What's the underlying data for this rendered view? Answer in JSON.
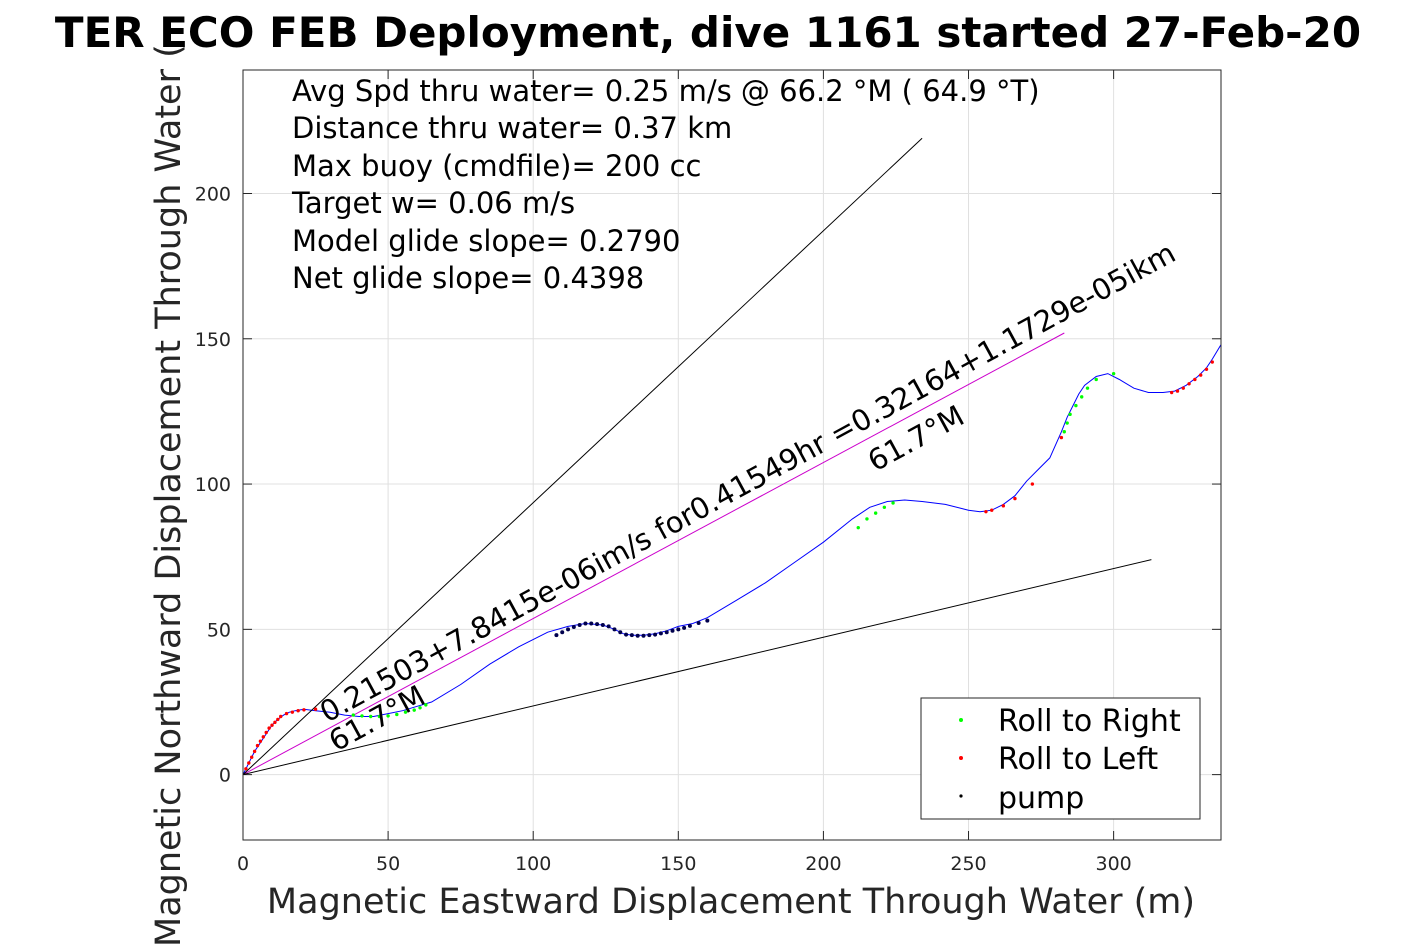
{
  "title": "TER ECO FEB Deployment, dive 1161 started 27-Feb-20",
  "info_lines": [
    "Avg Spd thru water=  0.25 m/s @  66.2 °M ( 64.9 °T)",
    "Distance thru water=  0.37 km",
    "Max buoy (cmdfile)= 200 cc",
    "Target w= 0.06 m/s",
    "Model glide slope= 0.2790",
    "Net glide slope= 0.4398"
  ],
  "annotations": {
    "fit_line": "0.21503+7.8415e-06im/s for0.41549hr =0.32164+1.1729e-05ikm",
    "heading_left": "61.7°M",
    "heading_right": "61.7°M"
  },
  "legend": {
    "items": [
      {
        "label": "Roll to Right",
        "color": "#00ff00"
      },
      {
        "label": "Roll to Left",
        "color": "#ff0000"
      },
      {
        "label": "pump",
        "color": "#000000"
      }
    ]
  },
  "colors": {
    "track": "#0000ff",
    "fit": "#cc00cc",
    "pump_dots": "#00004d",
    "grid": "#e0e0e0"
  },
  "chart_data": {
    "type": "line",
    "xlabel": "Magnetic Eastward Displacement Through Water (m)",
    "ylabel": "Magnetic Northward Displacement Through Water (",
    "xlim": [
      0,
      337
    ],
    "ylim": [
      -22.5,
      242.5
    ],
    "xticks": [
      0,
      50,
      100,
      150,
      200,
      250,
      300
    ],
    "yticks": [
      0,
      50,
      100,
      150,
      200
    ],
    "grid": true,
    "legend_position": "bottom-right",
    "series": [
      {
        "kind": "track",
        "x": [
          0,
          2,
          4,
          6,
          8,
          10,
          12,
          14,
          16,
          18,
          21,
          25,
          30,
          35,
          40,
          45,
          50,
          55,
          60,
          65,
          75,
          85,
          95,
          105,
          112,
          118,
          124,
          128,
          131,
          134,
          138,
          142,
          146,
          150,
          155,
          160,
          170,
          180,
          190,
          200,
          210,
          216,
          222,
          228,
          234,
          242,
          250,
          254,
          258,
          262,
          266,
          270,
          274,
          278,
          282,
          284,
          286,
          288,
          290,
          294,
          298,
          302,
          307,
          312,
          317,
          321,
          325,
          329,
          332,
          334,
          337
        ],
        "y": [
          0,
          4,
          8,
          11,
          14,
          17,
          19,
          20.5,
          21.5,
          22,
          22.5,
          22,
          21.5,
          20.5,
          20,
          20,
          21,
          22,
          23.5,
          25,
          31,
          38,
          44,
          49,
          51,
          52,
          51.5,
          50,
          48.5,
          48,
          48,
          48.5,
          49.5,
          51,
          52,
          54,
          60,
          66,
          73,
          80,
          88,
          92,
          94,
          94.5,
          94,
          93,
          91,
          90.5,
          91,
          93,
          96,
          101,
          105,
          109,
          118,
          123,
          127,
          131,
          134,
          137,
          138,
          136,
          133,
          131.5,
          131.5,
          132,
          134,
          137,
          140,
          143,
          148
        ]
      },
      {
        "kind": "fit",
        "x": [
          0,
          283
        ],
        "y": [
          0,
          152
        ]
      },
      {
        "kind": "reference",
        "x": [
          0,
          234
        ],
        "y": [
          0,
          219
        ]
      },
      {
        "kind": "reference",
        "x": [
          0,
          313
        ],
        "y": [
          0,
          74
        ]
      },
      {
        "name": "Roll to Right",
        "kind": "points",
        "x": [
          38,
          41,
          44,
          47,
          50,
          53,
          56,
          59,
          61,
          63,
          212,
          215,
          218,
          221,
          224,
          283,
          284,
          285,
          287,
          289,
          291,
          294,
          300
        ],
        "y": [
          20.5,
          20.2,
          20,
          20,
          20.2,
          20.7,
          21.5,
          22.2,
          23,
          24,
          85,
          88,
          90,
          92,
          93.5,
          118,
          121,
          124,
          127,
          130,
          133,
          136,
          138
        ]
      },
      {
        "name": "Roll to Left",
        "kind": "points",
        "x": [
          1,
          2,
          3,
          4,
          5,
          6,
          7,
          8,
          9,
          10,
          11,
          12,
          13,
          15,
          17,
          19,
          21,
          25,
          256,
          258,
          262,
          266,
          272,
          282,
          320,
          322,
          324,
          326,
          328,
          330,
          332,
          334
        ],
        "y": [
          2,
          4,
          6,
          8,
          10,
          11.5,
          13,
          14.5,
          16,
          17,
          18,
          19,
          20,
          21,
          21.5,
          22,
          22.3,
          22.5,
          90.5,
          91,
          92.5,
          95,
          100,
          116,
          131.5,
          132,
          133,
          134.5,
          136,
          137.5,
          139.5,
          142
        ]
      },
      {
        "name": "pump",
        "kind": "points",
        "x": [
          108,
          110,
          112,
          114,
          116,
          118,
          120,
          122,
          124,
          126,
          128,
          130,
          132,
          134,
          136,
          138,
          140,
          142,
          144,
          146,
          148,
          150,
          152,
          154,
          157,
          160
        ],
        "y": [
          48,
          49,
          50,
          50.8,
          51.5,
          52,
          52,
          51.8,
          51.5,
          51,
          50,
          49,
          48.2,
          48,
          47.8,
          47.8,
          48,
          48.2,
          48.6,
          49,
          49.5,
          50,
          50.5,
          51.2,
          52.2,
          53
        ]
      }
    ]
  }
}
